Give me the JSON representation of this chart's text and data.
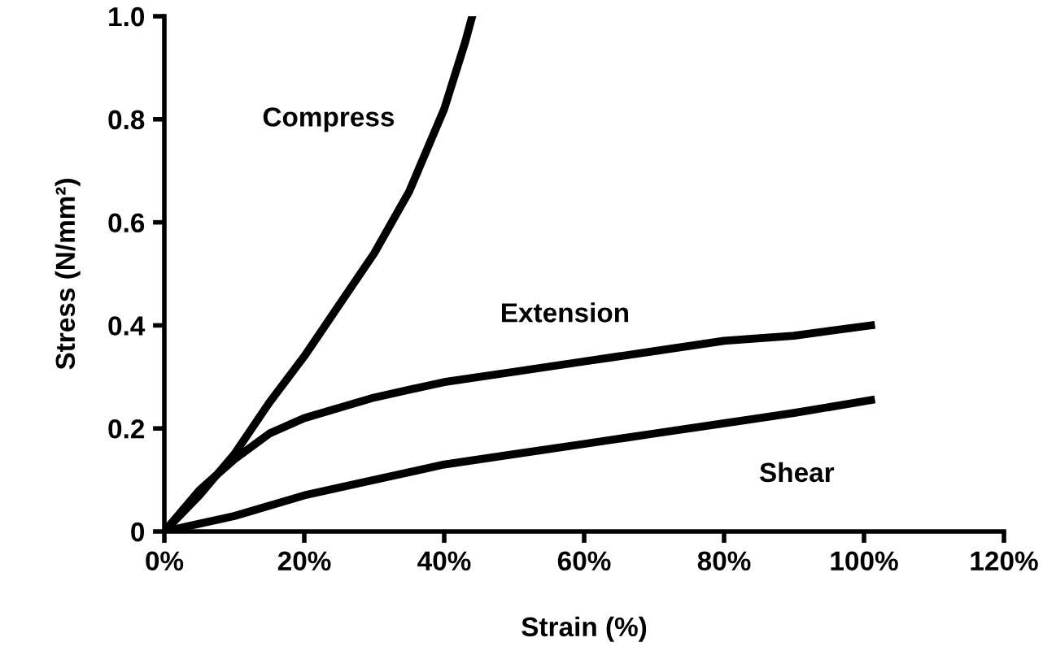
{
  "chart_data": {
    "type": "line",
    "xlabel": "Strain (%)",
    "ylabel": "Stress (N/mm²)",
    "xlim": [
      0,
      120
    ],
    "ylim": [
      0,
      1.0
    ],
    "xticks": [
      {
        "value": 0,
        "label": "0%"
      },
      {
        "value": 20,
        "label": "20%"
      },
      {
        "value": 40,
        "label": "40%"
      },
      {
        "value": 60,
        "label": "60%"
      },
      {
        "value": 80,
        "label": "80%"
      },
      {
        "value": 100,
        "label": "100%"
      },
      {
        "value": 120,
        "label": "120%"
      }
    ],
    "yticks": [
      0,
      0.2,
      0.4,
      0.6,
      0.8,
      {
        "value": 1.0,
        "label": "1.0"
      }
    ],
    "grid": false,
    "legend": false,
    "marker": "none",
    "line_style": "solid",
    "series": [
      {
        "name": "Compress",
        "color": "#000000",
        "x": [
          0,
          5,
          10,
          15,
          20,
          25,
          30,
          35,
          40,
          43,
          44
        ],
        "values": [
          0,
          0.07,
          0.15,
          0.25,
          0.34,
          0.44,
          0.54,
          0.66,
          0.82,
          0.95,
          1.0
        ]
      },
      {
        "name": "Extension",
        "color": "#000000",
        "x": [
          0,
          5,
          10,
          15,
          20,
          30,
          40,
          50,
          60,
          70,
          80,
          90,
          101
        ],
        "values": [
          0,
          0.08,
          0.14,
          0.19,
          0.22,
          0.26,
          0.29,
          0.31,
          0.33,
          0.35,
          0.37,
          0.38,
          0.4
        ]
      },
      {
        "name": "Shear",
        "color": "#000000",
        "x": [
          0,
          10,
          20,
          30,
          40,
          50,
          60,
          70,
          80,
          90,
          101
        ],
        "values": [
          0,
          0.03,
          0.07,
          0.1,
          0.13,
          0.15,
          0.17,
          0.19,
          0.21,
          0.23,
          0.255
        ]
      }
    ]
  }
}
